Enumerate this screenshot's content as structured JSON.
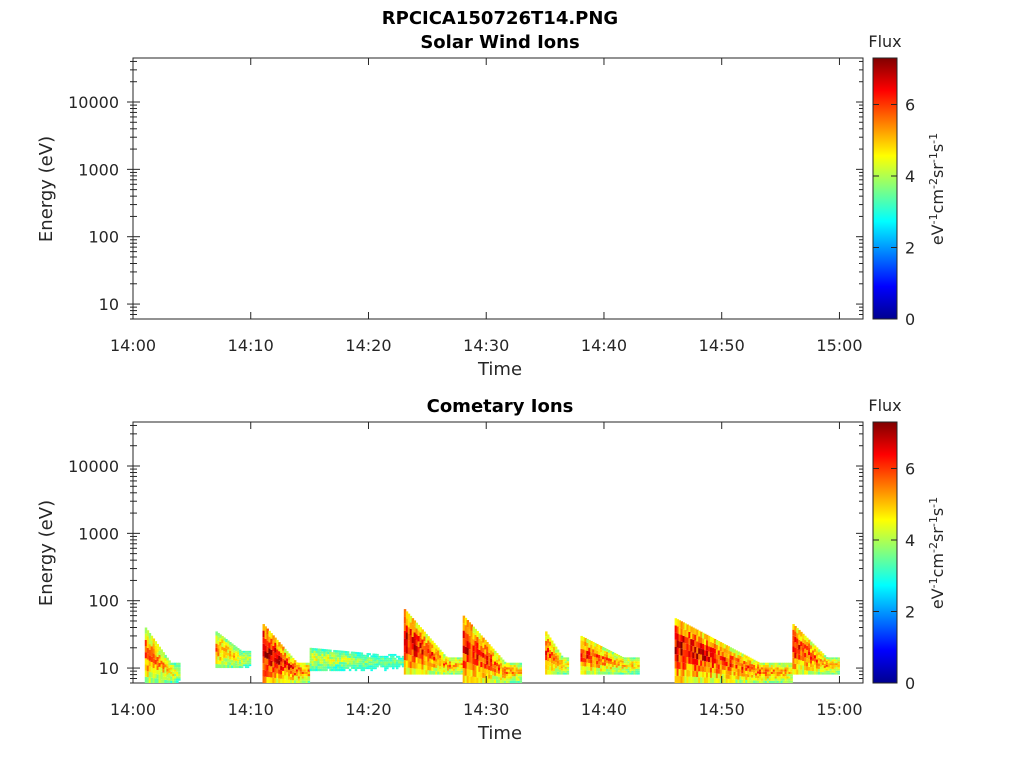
{
  "figure": {
    "filename_title": "RPCICA150726T14.PNG"
  },
  "colorbar_label": "Flux",
  "colorbar_units": "eV-1cm-2sr-1s-1",
  "colorbar_ticks": [
    "0",
    "2",
    "4",
    "6"
  ],
  "colorbar_colors": [
    "#00008f",
    "#0000ff",
    "#0080ff",
    "#00ffff",
    "#80ff80",
    "#ffff00",
    "#ff8000",
    "#ff0000",
    "#800000"
  ],
  "chart_data": [
    {
      "type": "heatmap",
      "title": "Solar Wind Ions",
      "xlabel": "Time",
      "ylabel": "Energy (eV)",
      "x_ticks": [
        "14:00",
        "14:10",
        "14:20",
        "14:30",
        "14:40",
        "14:50",
        "15:00"
      ],
      "y_ticks": [
        "10",
        "100",
        "1000",
        "10000"
      ],
      "y_scale": "log",
      "xlim": [
        "14:00",
        "15:02"
      ],
      "ylim": [
        6,
        45000
      ],
      "colorbar_range": [
        0,
        7.3
      ],
      "events": []
    },
    {
      "type": "heatmap",
      "title": "Cometary Ions",
      "xlabel": "Time",
      "ylabel": "Energy (eV)",
      "x_ticks": [
        "14:00",
        "14:10",
        "14:20",
        "14:30",
        "14:40",
        "14:50",
        "15:00"
      ],
      "y_ticks": [
        "10",
        "100",
        "1000",
        "10000"
      ],
      "y_scale": "log",
      "xlim": [
        "14:00",
        "15:02"
      ],
      "ylim": [
        6,
        45000
      ],
      "colorbar_range": [
        0,
        7.3
      ],
      "events": [
        {
          "start": "14:01",
          "end": "14:04",
          "energy_low": 6,
          "energy_high": 40,
          "flux_peak": 6.0
        },
        {
          "start": "14:07",
          "end": "14:10",
          "energy_low": 10,
          "energy_high": 35,
          "flux_peak": 5.6
        },
        {
          "start": "14:11",
          "end": "14:15",
          "energy_low": 6,
          "energy_high": 45,
          "flux_peak": 7.2
        },
        {
          "start": "14:15",
          "end": "14:23",
          "energy_low": 9,
          "energy_high": 20,
          "flux_peak": 4.6
        },
        {
          "start": "14:23",
          "end": "14:28",
          "energy_low": 8,
          "energy_high": 75,
          "flux_peak": 6.8
        },
        {
          "start": "14:28",
          "end": "14:33",
          "energy_low": 6,
          "energy_high": 60,
          "flux_peak": 6.8
        },
        {
          "start": "14:35",
          "end": "14:37",
          "energy_low": 8,
          "energy_high": 35,
          "flux_peak": 6.2
        },
        {
          "start": "14:38",
          "end": "14:43",
          "energy_low": 8,
          "energy_high": 30,
          "flux_peak": 6.3
        },
        {
          "start": "14:46",
          "end": "14:56",
          "energy_low": 6,
          "energy_high": 55,
          "flux_peak": 6.9
        },
        {
          "start": "14:56",
          "end": "15:00",
          "energy_low": 8,
          "energy_high": 45,
          "flux_peak": 6.6
        }
      ]
    }
  ]
}
